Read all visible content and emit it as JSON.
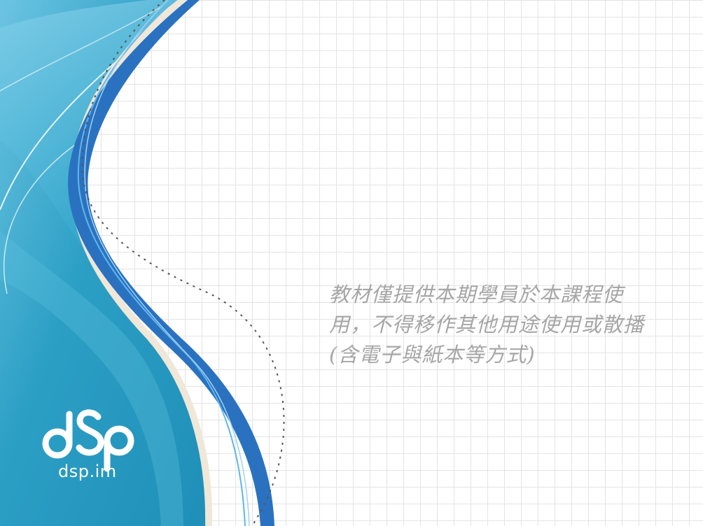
{
  "slide": {
    "notice_lines": [
      "教材僅提供本期學員於本課程使",
      "用，不得移作其他用途使用或散播",
      "(含電子與紙本等方式)"
    ]
  },
  "brand": {
    "logo_icon": "dsp-logo-icon",
    "logo_text": "dsp.im"
  },
  "colors": {
    "primary_blue": "#2a72c0",
    "aqua": "#2ea3c6",
    "light_aqua": "#5fc1df",
    "notice_text": "#a6a6a6",
    "grid": "#e4e4e4"
  }
}
